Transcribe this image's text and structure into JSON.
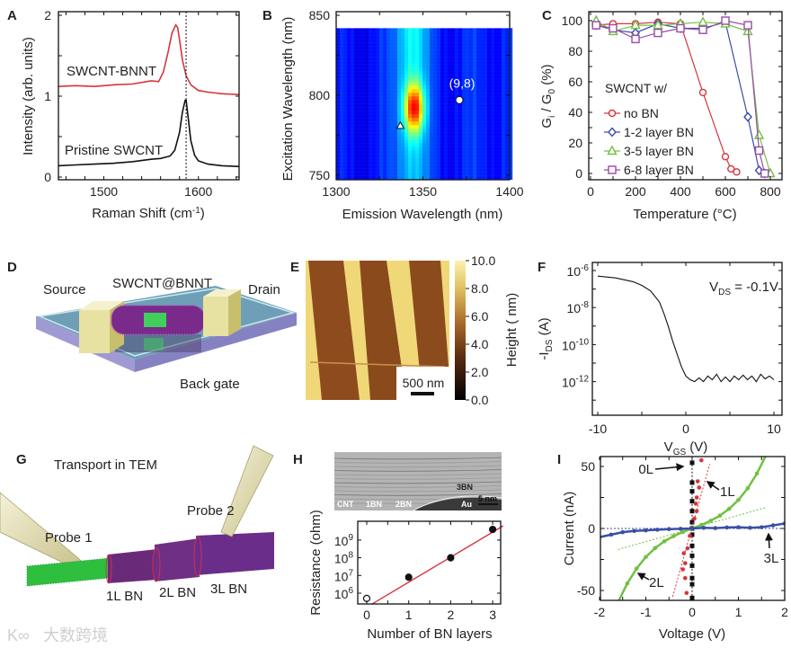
{
  "panel_labels": [
    "A",
    "B",
    "C",
    "D",
    "E",
    "F",
    "G",
    "H",
    "I"
  ],
  "colors": {
    "red": "#d8343b",
    "black": "#111111",
    "blue": "#3b4ea5",
    "green": "#72c043",
    "purple": "#9a4aa8"
  },
  "chart_data": [
    {
      "id": "A",
      "type": "line",
      "xlabel": "Raman Shift (cm",
      "xlabel_sup": "-1",
      "xlabel_end": ")",
      "ylabel": "Intensity (arb. units)",
      "xlim": [
        1452,
        1643
      ],
      "ylim": [
        0,
        2.05
      ],
      "xticks": [
        "1500",
        "1600"
      ],
      "xtick_values": [
        1500,
        1600
      ],
      "yticks": [
        "0",
        "1",
        "2"
      ],
      "ytick_values": [
        0,
        1,
        2
      ],
      "reference_line_x": 1587,
      "series": [
        {
          "name": "SWCNT-BNNT",
          "color": "#d8343b",
          "x": [
            1452,
            1470,
            1490,
            1510,
            1530,
            1550,
            1558,
            1563,
            1568,
            1572,
            1576,
            1578,
            1580,
            1583,
            1587,
            1592,
            1600,
            1610,
            1625,
            1643
          ],
          "y": [
            1.12,
            1.13,
            1.12,
            1.14,
            1.15,
            1.19,
            1.18,
            1.3,
            1.55,
            1.78,
            1.88,
            1.85,
            1.7,
            1.45,
            1.25,
            1.14,
            1.07,
            1.05,
            1.03,
            1.02
          ]
        },
        {
          "name": "Pristine SWCNT",
          "color": "#111111",
          "x": [
            1452,
            1470,
            1490,
            1510,
            1530,
            1550,
            1560,
            1570,
            1575,
            1580,
            1583,
            1586,
            1587,
            1589,
            1592,
            1596,
            1600,
            1610,
            1625,
            1643
          ],
          "y": [
            0.14,
            0.15,
            0.16,
            0.17,
            0.19,
            0.22,
            0.23,
            0.26,
            0.33,
            0.55,
            0.8,
            0.95,
            0.95,
            0.75,
            0.45,
            0.27,
            0.2,
            0.16,
            0.14,
            0.13
          ]
        }
      ]
    },
    {
      "id": "B",
      "type": "heatmap",
      "xlabel": "Emission Wavelength (nm)",
      "ylabel": "Excitation Wavelength (nm)",
      "xlim": [
        1300,
        1400
      ],
      "ylim": [
        750,
        850
      ],
      "xticks": [
        "1300",
        "1350",
        "1400"
      ],
      "xtick_values": [
        1300,
        1350,
        1400
      ],
      "yticks": [
        "750",
        "800",
        "850"
      ],
      "ytick_values": [
        750,
        800,
        850
      ],
      "data_ymax": 840,
      "peak": {
        "emission": 1345,
        "excitation": 792
      },
      "band_center_emission": 1343,
      "markers": [
        {
          "label": "(9,8)",
          "shape": "circle",
          "emission": 1371,
          "excitation": 797
        },
        {
          "label": "",
          "shape": "triangle",
          "emission": 1337,
          "excitation": 781
        }
      ]
    },
    {
      "id": "C",
      "type": "line",
      "xlabel": "Temperature (°C)",
      "ylabel_parts": [
        "G",
        "i",
        " / G",
        "0",
        " (%)"
      ],
      "xlim": [
        0,
        820
      ],
      "ylim": [
        -4,
        104
      ],
      "xticks": [
        "0",
        "200",
        "400",
        "600",
        "800"
      ],
      "xtick_values": [
        0,
        200,
        400,
        600,
        800
      ],
      "yticks": [
        "0",
        "20",
        "40",
        "60",
        "80",
        "100"
      ],
      "ytick_values": [
        0,
        20,
        40,
        60,
        80,
        100
      ],
      "legend_title": "SWCNT w/",
      "legend_position": "center-left",
      "series": [
        {
          "name": "no BN",
          "marker": "circle",
          "color": "#d8343b",
          "x": [
            25,
            100,
            200,
            300,
            400,
            500,
            600,
            625,
            650
          ],
          "y": [
            97,
            98,
            98,
            99,
            98,
            53,
            11,
            3,
            1
          ]
        },
        {
          "name": "1-2 layer BN",
          "marker": "diamond",
          "color": "#3b4ea5",
          "x": [
            25,
            100,
            200,
            300,
            400,
            500,
            600,
            700,
            750,
            775
          ],
          "y": [
            97,
            94,
            92,
            98,
            95,
            95,
            99,
            37,
            2,
            0
          ]
        },
        {
          "name": "3-5 layer BN",
          "marker": "triangle",
          "color": "#72c043",
          "x": [
            25,
            100,
            200,
            300,
            400,
            500,
            600,
            700,
            750,
            800
          ],
          "y": [
            100,
            93,
            97,
            97,
            98,
            99,
            98,
            93,
            25,
            0
          ]
        },
        {
          "name": "6-8 layer BN",
          "marker": "square",
          "color": "#9a4aa8",
          "x": [
            25,
            100,
            200,
            300,
            400,
            500,
            600,
            700,
            750,
            775
          ],
          "y": [
            97,
            95,
            88,
            92,
            95,
            94,
            100,
            97,
            15,
            0
          ]
        }
      ]
    },
    {
      "id": "F",
      "type": "line",
      "xlabel": "V",
      "xlabel_sub": "GS",
      "xlabel_end": " (V)",
      "ylabel": "-I",
      "ylabel_sub": "DS",
      "ylabel_end": " (A)",
      "annotation": {
        "main": "V",
        "sub": "DS",
        "end": " = -0.1V"
      },
      "xlim": [
        -10.5,
        10.8
      ],
      "yscale": "log",
      "xticks": [
        "-10",
        "0",
        "10"
      ],
      "xtick_values": [
        -10,
        0,
        10
      ],
      "yticks": [
        {
          "base": "10",
          "exp": "-6"
        },
        {
          "base": "10",
          "exp": "-8"
        },
        {
          "base": "10",
          "exp": "-10"
        },
        {
          "base": "10",
          "exp": "-12"
        }
      ],
      "ytick_values": [
        -6,
        -8,
        -10,
        -12
      ],
      "series": [
        {
          "name": "transfer curve",
          "color": "#111111",
          "x": [
            -10,
            -8,
            -6,
            -5,
            -4,
            -3,
            -2.5,
            -2,
            -1.5,
            -1,
            -0.5,
            0,
            0.5,
            1,
            1.5,
            2,
            2.5,
            3,
            3.5,
            4,
            4.5,
            5,
            5.5,
            6,
            6.5,
            7,
            7.5,
            8,
            8.5,
            9,
            9.5,
            10
          ],
          "log10_y": [
            -6.3,
            -6.4,
            -6.6,
            -6.8,
            -7.1,
            -7.7,
            -8.3,
            -9.0,
            -9.8,
            -10.5,
            -11.2,
            -11.7,
            -11.9,
            -12.0,
            -11.8,
            -12.0,
            -11.7,
            -11.9,
            -11.6,
            -12.0,
            -11.75,
            -12.0,
            -11.7,
            -11.9,
            -11.65,
            -11.9,
            -11.7,
            -12.0,
            -11.6,
            -11.85,
            -11.7,
            -11.9
          ]
        }
      ]
    },
    {
      "id": "H",
      "type": "scatter",
      "xlabel": "Number of BN layers",
      "ylabel": "Resistance (ohm)",
      "xlim": [
        -0.25,
        3.25
      ],
      "yscale": "log",
      "xticks": [
        "0",
        "1",
        "2",
        "3"
      ],
      "xtick_values": [
        0,
        1,
        2,
        3
      ],
      "yticks": [
        {
          "base": "10",
          "exp": "6"
        },
        {
          "base": "10",
          "exp": "7"
        },
        {
          "base": "10",
          "exp": "8"
        },
        {
          "base": "10",
          "exp": "9"
        }
      ],
      "ytick_values": [
        6,
        7,
        8,
        9
      ],
      "points": {
        "x": [
          0,
          1,
          2,
          3
        ],
        "log10_y": [
          5.7,
          6.9,
          8.0,
          9.6
        ],
        "filled": [
          false,
          true,
          true,
          true
        ]
      },
      "fit_line": {
        "x": [
          0.1,
          3.25
        ],
        "log10_y": [
          5.35,
          9.8
        ],
        "color": "#d8343b"
      }
    },
    {
      "id": "I",
      "type": "scatter",
      "xlabel": "Voltage (V)",
      "ylabel": "Current (nA)",
      "xlim": [
        -2,
        2
      ],
      "ylim": [
        -60,
        60
      ],
      "xticks": [
        "-2",
        "-1",
        "0",
        "1",
        "2"
      ],
      "xtick_values": [
        -2,
        -1,
        0,
        1,
        2
      ],
      "yticks": [
        "50",
        "0",
        "-50"
      ],
      "ytick_values": [
        50,
        0,
        -50
      ],
      "series": [
        {
          "name": "0L",
          "color": "#111111",
          "marker": "square",
          "x": [
            0,
            0,
            0,
            0,
            0,
            0,
            0,
            0,
            0,
            0,
            0,
            0,
            0,
            0
          ],
          "y": [
            -56,
            -45,
            -40,
            -30,
            -22,
            -14,
            -5,
            0,
            5,
            14,
            22,
            30,
            37,
            53
          ],
          "fit": {
            "x": [
              0,
              0
            ],
            "y": [
              -60,
              58
            ]
          }
        },
        {
          "name": "1L",
          "color": "#d8343b",
          "marker": "dot",
          "x": [
            -0.12,
            -0.15,
            -0.2,
            -0.15,
            -0.18,
            -0.1,
            -0.05,
            0,
            0.05,
            0.1,
            0.08,
            0.1,
            0.15,
            0.12,
            0.2
          ],
          "y": [
            -52,
            -40,
            -33,
            -28,
            -20,
            -16,
            -6,
            0,
            8,
            14,
            20,
            25,
            33,
            38,
            55
          ],
          "fit": {
            "x": [
              -0.42,
              0.38
            ],
            "y": [
              -55,
              52
            ]
          }
        },
        {
          "name": "2L",
          "color": "#72c043",
          "marker": "dot",
          "x": [
            -1.6,
            -1.4,
            -1.2,
            -1.0,
            -0.8,
            -0.6,
            -0.4,
            -0.2,
            0,
            0.2,
            0.4,
            0.6,
            0.8,
            1.0,
            1.2,
            1.4,
            1.6
          ],
          "y": [
            -59.3,
            -44.3,
            -32.35,
            -23,
            -15.81,
            -10.34,
            -6.18,
            -2.87,
            0,
            2.87,
            6.18,
            10.34,
            15.81,
            23,
            32.35,
            44.3,
            59.3
          ],
          "fit": {
            "x": [
              -1.6,
              1.6
            ],
            "y": [
              -17,
              17
            ]
          }
        },
        {
          "name": "3L",
          "color": "#3b4ea5",
          "marker": "dot",
          "x": [
            -2,
            -1.75,
            -1.5,
            -1.25,
            -1,
            -0.75,
            -0.5,
            -0.25,
            0,
            0.25,
            0.5,
            0.75,
            1,
            1.25,
            1.5,
            1.75,
            2
          ],
          "y": [
            -7,
            -5,
            -3,
            -2,
            -1.5,
            -1,
            -0.5,
            -0.3,
            0,
            0.5,
            0.3,
            0.8,
            1,
            0.5,
            1,
            2.5,
            4
          ],
          "fit": {
            "x": [
              -2,
              2
            ],
            "y": [
              0,
              0
            ]
          }
        }
      ]
    }
  ],
  "panelA": {
    "label_top": "SWCNT-BNNT",
    "label_bottom": "Pristine SWCNT"
  },
  "panelD": {
    "source": "Source",
    "tube": "SWCNT@BNNT",
    "drain": "Drain",
    "gate": "Back gate"
  },
  "panelE": {
    "colorbar_label": "Height ( nm)",
    "colorbar_ticks": [
      "10.0",
      "8.0",
      "6.0",
      "4.0",
      "2.0",
      "0.0"
    ],
    "colorbar_values": [
      10,
      8,
      6,
      4,
      2,
      0
    ],
    "scale_bar": "500 nm"
  },
  "panelG": {
    "title": "Transport in TEM",
    "probe1": "Probe 1",
    "probe2": "Probe 2",
    "seg1": "1L BN",
    "seg2": "2L BN",
    "seg3": "3L BN"
  },
  "panelH": {
    "tem_labels": {
      "cnt": "CNT",
      "bn1": "1BN",
      "bn2": "2BN",
      "bn3": "3BN",
      "au": "Au",
      "scale": "5 nm"
    }
  },
  "watermark": {
    "logo": "K∞",
    "text": "大数跨境"
  }
}
